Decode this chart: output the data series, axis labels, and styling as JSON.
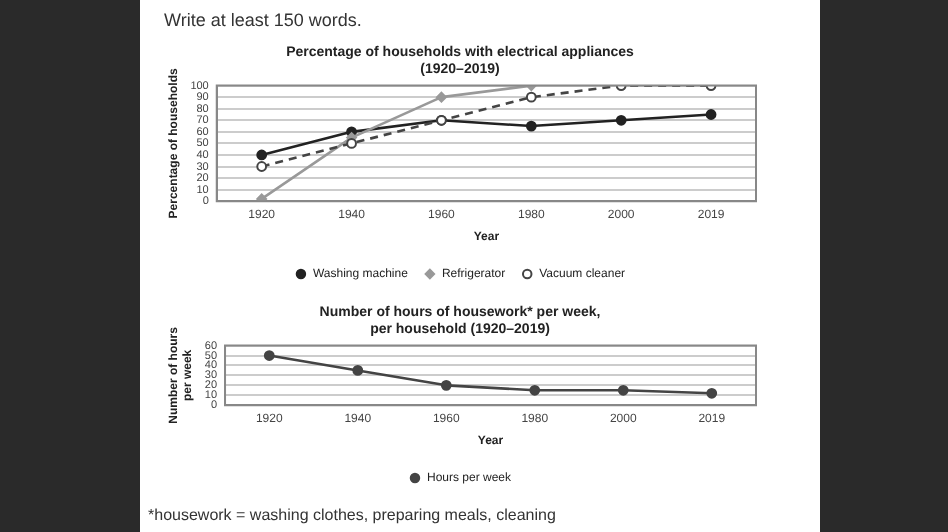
{
  "chart_data": [
    {
      "type": "line",
      "title": "Percentage of households with electrical appliances\n(1920–2019)",
      "xlabel": "Year",
      "ylabel": "Percentage of households",
      "annotations": [
        "Write at least 150 words."
      ],
      "categories": [
        "1920",
        "1940",
        "1960",
        "1980",
        "2000",
        "2019"
      ],
      "series": [
        {
          "name": "Washing machine",
          "color": "#222222",
          "marker": "circle",
          "line_style": "solid",
          "values": [
            40,
            60,
            70,
            65,
            70,
            75
          ]
        },
        {
          "name": "Refrigerator",
          "color": "#999999",
          "marker": "diamond",
          "line_style": "solid",
          "values": [
            2,
            55,
            90,
            100,
            null,
            null
          ]
        },
        {
          "name": "Vacuum cleaner",
          "color": "#444444",
          "marker": "circle",
          "line_style": "dashed",
          "values": [
            30,
            50,
            70,
            90,
            100,
            100
          ]
        }
      ],
      "ylim": [
        0,
        100
      ],
      "yticks": [
        0,
        10,
        20,
        30,
        40,
        50,
        60,
        70,
        80,
        90,
        100
      ],
      "grid": "y",
      "legend": "bottom"
    },
    {
      "type": "line",
      "title": "Number of hours of housework* per week,\nper household (1920–2019)",
      "xlabel": "Year",
      "ylabel": "Number of hours\nper week",
      "annotations": [
        "*housework = washing clothes, preparing meals, cleaning"
      ],
      "categories": [
        "1920",
        "1940",
        "1960",
        "1980",
        "2000",
        "2019"
      ],
      "series": [
        {
          "name": "Hours per week",
          "color": "#444444",
          "marker": "circle",
          "line_style": "solid",
          "values": [
            50,
            35,
            20,
            15,
            15,
            12
          ]
        }
      ],
      "ylim": [
        0,
        60
      ],
      "yticks": [
        0,
        10,
        20,
        30,
        40,
        50,
        60
      ],
      "grid": "y",
      "legend": "bottom"
    }
  ]
}
